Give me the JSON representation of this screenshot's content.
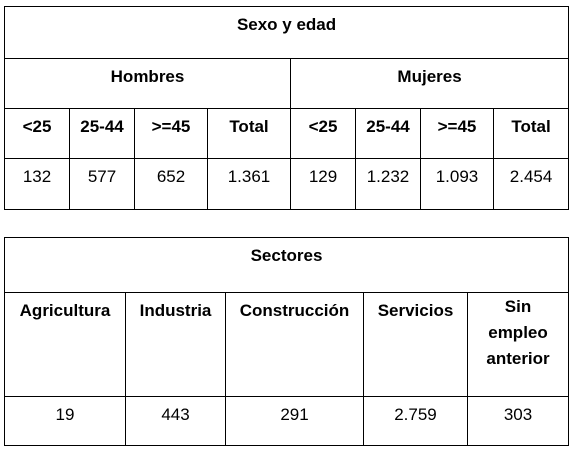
{
  "table1": {
    "title": "Sexo y edad",
    "groups": [
      "Hombres",
      "Mujeres"
    ],
    "headers": [
      "<25",
      "25-44",
      ">=45",
      "Total",
      "<25",
      "25-44",
      ">=45",
      "Total"
    ],
    "values": [
      "132",
      "577",
      "652",
      "1.361",
      "129",
      "1.232",
      "1.093",
      "2.454"
    ]
  },
  "table2": {
    "title": "Sectores",
    "headers": [
      "Agricultura",
      "Industria",
      "Construcción",
      "Servicios",
      "Sin empleo anterior"
    ],
    "values": [
      "19",
      "443",
      "291",
      "2.759",
      "303"
    ]
  }
}
